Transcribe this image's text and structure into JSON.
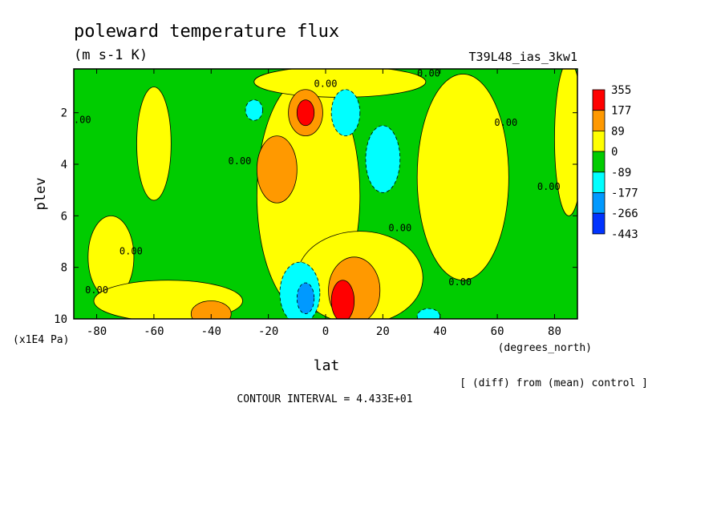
{
  "chart_data": {
    "type": "heatmap",
    "title": "poleward temperature flux",
    "subtitle": "(m s-1 K)",
    "run_label": "T39L48_ias_3kw1",
    "xlabel": "lat",
    "x_units": "(degrees_north)",
    "ylabel": "plev",
    "y_units": "(x1E4 Pa)",
    "x_ticks": [
      "-80",
      "-60",
      "-40",
      "-20",
      "0",
      "20",
      "40",
      "60",
      "80"
    ],
    "x_tick_values": [
      -80,
      -60,
      -40,
      -20,
      0,
      20,
      40,
      60,
      80
    ],
    "y_ticks": [
      "2",
      "4",
      "6",
      "8",
      "10"
    ],
    "y_tick_values": [
      2,
      4,
      6,
      8,
      10
    ],
    "xlim": [
      -88,
      88
    ],
    "ylim": [
      10,
      0.3
    ],
    "y_inverted": true,
    "contour_label": "0.00",
    "contour_interval": "CONTOUR INTERVAL = 4.433E+01",
    "note": "[ (diff) from (mean) control ]",
    "colorbar": {
      "labels": [
        "355",
        "177",
        "89",
        "0",
        "-89",
        "-177",
        "-266",
        "-443"
      ],
      "colors": [
        "#ff0000",
        "#ff9900",
        "#ffff00",
        "#00cc00",
        "#00ffff",
        "#0099ff",
        "#0033ff"
      ]
    },
    "background_color": "#00cc00",
    "regions": [
      {
        "kind": "positive",
        "color": "#ffff00",
        "lat": -60,
        "plev": 3.2,
        "rlat": 6,
        "rplev": 2.2
      },
      {
        "kind": "positive",
        "color": "#ffff00",
        "lat": -75,
        "plev": 7.6,
        "rlat": 8,
        "rplev": 1.6
      },
      {
        "kind": "positive",
        "color": "#ffff00",
        "lat": -55,
        "plev": 9.3,
        "rlat": 26,
        "rplev": 0.8
      },
      {
        "kind": "positive",
        "color": "#ffff00",
        "lat": -6,
        "plev": 5.2,
        "rlat": 18,
        "rplev": 4.6
      },
      {
        "kind": "positive",
        "color": "#ffff00",
        "lat": 12,
        "plev": 8.4,
        "rlat": 22,
        "rplev": 1.8
      },
      {
        "kind": "positive",
        "color": "#ffff00",
        "lat": 48,
        "plev": 4.5,
        "rlat": 16,
        "rplev": 4.0
      },
      {
        "kind": "positive",
        "color": "#ffff00",
        "lat": 85,
        "plev": 3.0,
        "rlat": 5,
        "rplev": 3.0
      },
      {
        "kind": "positive",
        "color": "#ffff00",
        "lat": 5,
        "plev": 0.8,
        "rlat": 30,
        "rplev": 0.6
      },
      {
        "kind": "positive",
        "color": "#ff9900",
        "lat": -17,
        "plev": 4.2,
        "rlat": 7,
        "rplev": 1.3
      },
      {
        "kind": "positive",
        "color": "#ff9900",
        "lat": -7,
        "plev": 2.0,
        "rlat": 6,
        "rplev": 0.9
      },
      {
        "kind": "positive",
        "color": "#ff9900",
        "lat": 10,
        "plev": 8.9,
        "rlat": 9,
        "rplev": 1.3
      },
      {
        "kind": "positive",
        "color": "#ff9900",
        "lat": -40,
        "plev": 9.8,
        "rlat": 7,
        "rplev": 0.5
      },
      {
        "kind": "positive",
        "color": "#ff0000",
        "lat": -7,
        "plev": 2.0,
        "rlat": 3,
        "rplev": 0.5
      },
      {
        "kind": "positive",
        "color": "#ff0000",
        "lat": 6,
        "plev": 9.3,
        "rlat": 4,
        "rplev": 0.8
      },
      {
        "kind": "negative",
        "color": "#00ffff",
        "lat": 20,
        "plev": 3.8,
        "rlat": 6,
        "rplev": 1.3
      },
      {
        "kind": "negative",
        "color": "#00ffff",
        "lat": 7,
        "plev": 2.0,
        "rlat": 5,
        "rplev": 0.9
      },
      {
        "kind": "negative",
        "color": "#00ffff",
        "lat": -9,
        "plev": 9.0,
        "rlat": 7,
        "rplev": 1.2
      },
      {
        "kind": "negative",
        "color": "#00ffff",
        "lat": -25,
        "plev": 1.9,
        "rlat": 3,
        "rplev": 0.4
      },
      {
        "kind": "negative",
        "color": "#00ffff",
        "lat": 36,
        "plev": 9.9,
        "rlat": 4,
        "rplev": 0.3
      },
      {
        "kind": "negative",
        "color": "#0099ff",
        "lat": -7,
        "plev": 9.2,
        "rlat": 3,
        "rplev": 0.6
      }
    ],
    "contour_labels": [
      {
        "lat": -86,
        "plev": 2.4
      },
      {
        "lat": -30,
        "plev": 4.0
      },
      {
        "lat": -68,
        "plev": 7.5
      },
      {
        "lat": -80,
        "plev": 9.0
      },
      {
        "lat": 36,
        "plev": 0.6
      },
      {
        "lat": 0,
        "plev": 1.0
      },
      {
        "lat": 63,
        "plev": 2.5
      },
      {
        "lat": 78,
        "plev": 5.0
      },
      {
        "lat": 26,
        "plev": 6.6
      },
      {
        "lat": 47,
        "plev": 8.7
      }
    ]
  }
}
